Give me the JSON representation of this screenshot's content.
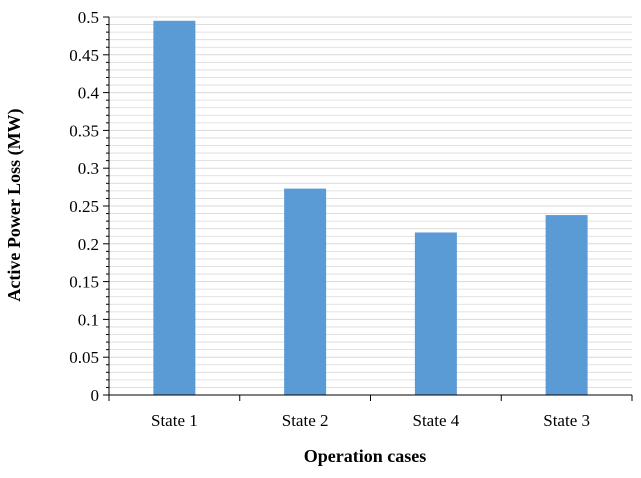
{
  "chart_data": {
    "type": "bar",
    "title": "",
    "xlabel": "Operation cases",
    "ylabel": "Active Power Loss (MW)",
    "categories": [
      "State 1",
      "State 2",
      "State 4",
      "State 3"
    ],
    "values": [
      0.495,
      0.273,
      0.215,
      0.238
    ],
    "ylim": [
      0,
      0.5
    ],
    "yticks": [
      "0",
      "0.05",
      "0.1",
      "0.15",
      "0.2",
      "0.25",
      "0.3",
      "0.35",
      "0.4",
      "0.45",
      "0.5"
    ],
    "minor_grid": true,
    "legend": "none",
    "colors": {
      "bar": "#5b9bd5",
      "grid": "#d9d9d9",
      "axis": "#000000"
    }
  }
}
